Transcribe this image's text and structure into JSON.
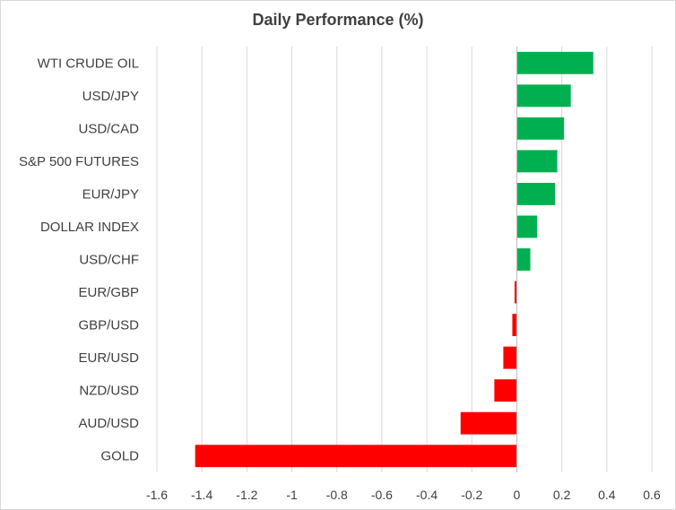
{
  "chart_data": {
    "type": "bar",
    "orientation": "horizontal",
    "title": "Daily Performance (%)",
    "xlabel": "",
    "ylabel": "",
    "xlim": [
      -1.6,
      0.6
    ],
    "x_ticks": [
      "-1.6",
      "-1.4",
      "-1.2",
      "-1",
      "-0.8",
      "-0.6",
      "-0.4",
      "-0.2",
      "0",
      "0.2",
      "0.4",
      "0.6"
    ],
    "grid": true,
    "legend": "none",
    "categories": [
      "WTI CRUDE OIL",
      "USD/JPY",
      "USD/CAD",
      "S&P 500 FUTURES",
      "EUR/JPY",
      "DOLLAR INDEX",
      "USD/CHF",
      "EUR/GBP",
      "GBP/USD",
      "EUR/USD",
      "NZD/USD",
      "AUD/USD",
      "GOLD"
    ],
    "values": [
      0.34,
      0.24,
      0.21,
      0.18,
      0.17,
      0.09,
      0.06,
      -0.01,
      -0.02,
      -0.06,
      -0.1,
      -0.25,
      -1.43
    ],
    "colors": {
      "positive": "#00b050",
      "negative": "#ff0000"
    }
  }
}
